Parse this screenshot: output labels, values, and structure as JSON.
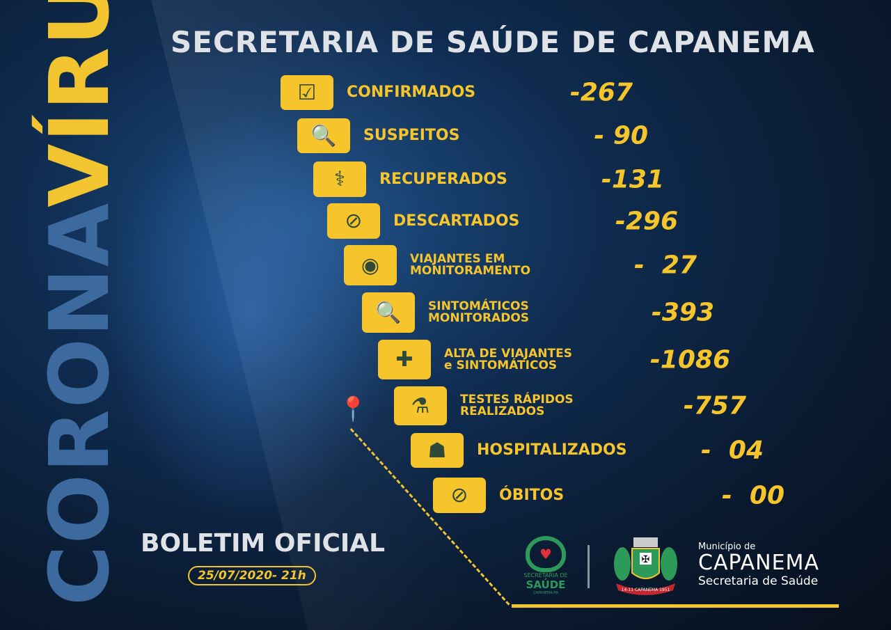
{
  "title": "SECRETARIA DE SAÚDE DE CAPANEMA",
  "side_banner": {
    "part1": "CORONA",
    "part2": "VÍRUS"
  },
  "accent_color": "#f6c42b",
  "rows": [
    {
      "icon": "checkbox-icon",
      "label": "CONFIRMADOS",
      "value": "-267"
    },
    {
      "icon": "search-icon",
      "label": "SUSPEITOS",
      "value": "- 90"
    },
    {
      "icon": "stethoscope-icon",
      "label": "RECUPERADOS",
      "value": "-131"
    },
    {
      "icon": "prohibited-icon",
      "label": "DESCARTADOS",
      "value": "-296"
    },
    {
      "icon": "eye-icon",
      "label": "VIAJANTES EM\nMONITORAMENTO",
      "value": "-  27"
    },
    {
      "icon": "magnifier-person-icon",
      "label": "SINTOMÁTICOS\nMONITORADOS",
      "value": "-393"
    },
    {
      "icon": "heart-plus-icon",
      "label": "ALTA DE VIAJANTES\ne SINTOMÁTICOS",
      "value": "-1086"
    },
    {
      "icon": "flask-icon",
      "label": "TESTES RÁPIDOS\nREALIZADOS",
      "value": "-757"
    },
    {
      "icon": "hospital-person-icon",
      "label": "HOSPITALIZADOS",
      "value": "-  04"
    },
    {
      "icon": "prohibited-icon",
      "label": "ÓBITOS",
      "value": "-  00"
    }
  ],
  "boletim": "BOLETIM OFICIAL",
  "date": "25/07/2020- 21h",
  "footer": {
    "saude_logo": {
      "line1": "SECRETARIA DE",
      "line2": "SAÚDE",
      "line3": "CAPANEMA-PR"
    },
    "crest_text": "14-11 CAPANEMA 1951",
    "municipio": "Município de",
    "city": "CAPANEMA",
    "dept": "Secretaria de Saúde"
  }
}
